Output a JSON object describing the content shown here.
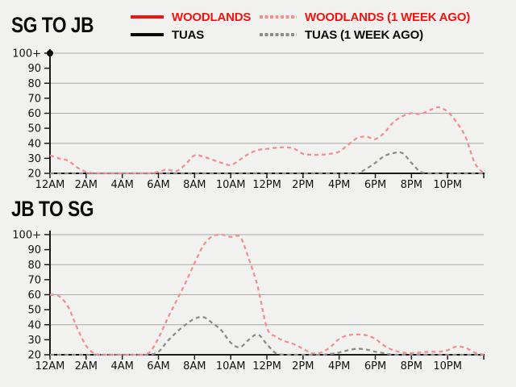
{
  "page": {
    "background": "#f1f1ef",
    "gridline_color": "#a9a9a9",
    "axis_color": "#1a1a1a",
    "label_color": "#111111"
  },
  "legend": {
    "items": [
      {
        "label": "WOODLANDS",
        "style": "solid",
        "color": "#ee1511",
        "text_color": "#ee1511"
      },
      {
        "label": "WOODLANDS (1 WEEK AGO)",
        "style": "dashed",
        "color": "#f2908e",
        "text_color": "#ee1511"
      },
      {
        "label": "TUAS",
        "style": "solid",
        "color": "#0a0a0a",
        "text_color": "#0a0a0a"
      },
      {
        "label": "TUAS (1 WEEK AGO)",
        "style": "dashed",
        "color": "#8c8c8c",
        "text_color": "#0a0a0a"
      }
    ]
  },
  "chart_data": [
    {
      "type": "line",
      "title": "SG TO JB",
      "xlabel": "",
      "ylabel": "",
      "xlim": [
        0,
        24
      ],
      "ylim": [
        20,
        100
      ],
      "x_tick_hours": [
        0,
        2,
        4,
        6,
        8,
        10,
        12,
        14,
        16,
        18,
        20,
        22,
        24
      ],
      "x_tick_labels": [
        "12AM",
        "2AM",
        "4AM",
        "6AM",
        "8AM",
        "10AM",
        "12PM",
        "2PM",
        "4PM",
        "6PM",
        "8PM",
        "10PM"
      ],
      "y_ticks": [
        20,
        30,
        40,
        50,
        60,
        70,
        80,
        90,
        100
      ],
      "y_tick_labels": [
        "20",
        "30",
        "40",
        "50",
        "60",
        "70",
        "80",
        "90",
        "100+"
      ],
      "gridline_values": [
        40,
        60,
        80,
        100
      ],
      "grid": true,
      "legend_position": "top",
      "series": [
        {
          "name": "TUAS (1 WEEK AGO)",
          "style": "dashed",
          "color": "#8c8c8c",
          "points": [
            [
              0,
              20
            ],
            [
              0.5,
              20
            ],
            [
              1,
              20
            ],
            [
              1.5,
              20
            ],
            [
              2,
              20
            ],
            [
              2.5,
              20
            ],
            [
              3,
              20
            ],
            [
              3.5,
              20
            ],
            [
              4,
              20
            ],
            [
              4.5,
              20
            ],
            [
              5,
              20
            ],
            [
              5.5,
              20
            ],
            [
              6,
              20
            ],
            [
              6.5,
              20
            ],
            [
              7,
              20
            ],
            [
              7.5,
              20
            ],
            [
              8,
              20
            ],
            [
              8.5,
              20
            ],
            [
              9,
              20
            ],
            [
              9.5,
              20
            ],
            [
              10,
              20
            ],
            [
              10.5,
              20
            ],
            [
              11,
              20
            ],
            [
              11.5,
              20
            ],
            [
              12,
              20
            ],
            [
              12.5,
              20
            ],
            [
              13,
              20
            ],
            [
              13.5,
              20
            ],
            [
              14,
              20
            ],
            [
              14.5,
              20
            ],
            [
              15,
              20
            ],
            [
              15.5,
              20
            ],
            [
              16,
              20
            ],
            [
              16.5,
              20
            ],
            [
              17,
              20
            ],
            [
              17.5,
              23
            ],
            [
              18,
              27
            ],
            [
              18.5,
              31.5
            ],
            [
              19,
              33.5
            ],
            [
              19.5,
              33.5
            ],
            [
              20,
              27
            ],
            [
              20.5,
              21
            ],
            [
              21,
              20
            ],
            [
              21.5,
              20
            ],
            [
              22,
              20
            ],
            [
              22.5,
              20
            ],
            [
              23,
              20
            ],
            [
              23.5,
              20
            ],
            [
              24,
              20
            ]
          ]
        },
        {
          "name": "WOODLANDS (1 WEEK AGO)",
          "style": "dashed",
          "color": "#f2908e",
          "points": [
            [
              0,
              32
            ],
            [
              0.5,
              30
            ],
            [
              1,
              28.5
            ],
            [
              1.5,
              24
            ],
            [
              2,
              21
            ],
            [
              2.5,
              20
            ],
            [
              3,
              20
            ],
            [
              3.5,
              20
            ],
            [
              4,
              20
            ],
            [
              4.5,
              20
            ],
            [
              5,
              20
            ],
            [
              5.5,
              20
            ],
            [
              6,
              21
            ],
            [
              6.5,
              22.5
            ],
            [
              7,
              21.5
            ],
            [
              7.5,
              26
            ],
            [
              8,
              32
            ],
            [
              8.5,
              31
            ],
            [
              9,
              29
            ],
            [
              9.5,
              27
            ],
            [
              10,
              25.5
            ],
            [
              10.5,
              29
            ],
            [
              11,
              33
            ],
            [
              11.5,
              35.5
            ],
            [
              12,
              36.3
            ],
            [
              12.5,
              37
            ],
            [
              13,
              37.3
            ],
            [
              13.5,
              36.5
            ],
            [
              14,
              33
            ],
            [
              14.5,
              32.4
            ],
            [
              15,
              32.4
            ],
            [
              15.5,
              33
            ],
            [
              16,
              34.5
            ],
            [
              16.5,
              39
            ],
            [
              17,
              43.5
            ],
            [
              17.5,
              44.5
            ],
            [
              18,
              42.8
            ],
            [
              18.5,
              47
            ],
            [
              19,
              54
            ],
            [
              19.5,
              58
            ],
            [
              20,
              60
            ],
            [
              20.5,
              59.5
            ],
            [
              21,
              62
            ],
            [
              21.5,
              64
            ],
            [
              22,
              61
            ],
            [
              22.5,
              54
            ],
            [
              23,
              44
            ],
            [
              23.5,
              27
            ],
            [
              24,
              20
            ]
          ]
        },
        {
          "name": "TUAS",
          "style": "solid",
          "color": "#0a0a0a",
          "points": [
            [
              0,
              100
            ]
          ],
          "note": "current reading shown as dot at 12AM, value 100+"
        },
        {
          "name": "WOODLANDS",
          "style": "solid",
          "color": "#ee1511",
          "points": []
        }
      ]
    },
    {
      "type": "line",
      "title": "JB TO SG",
      "xlabel": "",
      "ylabel": "",
      "xlim": [
        0,
        24
      ],
      "ylim": [
        20,
        100
      ],
      "x_tick_hours": [
        0,
        2,
        4,
        6,
        8,
        10,
        12,
        14,
        16,
        18,
        20,
        22,
        24
      ],
      "x_tick_labels": [
        "12AM",
        "2AM",
        "4AM",
        "6AM",
        "8AM",
        "10AM",
        "12PM",
        "2PM",
        "4PM",
        "6PM",
        "8PM",
        "10PM"
      ],
      "y_ticks": [
        20,
        30,
        40,
        50,
        60,
        70,
        80,
        90,
        100
      ],
      "y_tick_labels": [
        "20",
        "30",
        "40",
        "50",
        "60",
        "70",
        "80",
        "90",
        "100+"
      ],
      "gridline_values": [
        40,
        60,
        80,
        100
      ],
      "grid": true,
      "legend_position": "top",
      "series": [
        {
          "name": "TUAS (1 WEEK AGO)",
          "style": "dashed",
          "color": "#8c8c8c",
          "points": [
            [
              0,
              20
            ],
            [
              0.5,
              20
            ],
            [
              1,
              20
            ],
            [
              1.5,
              20
            ],
            [
              2,
              20
            ],
            [
              2.5,
              20
            ],
            [
              3,
              20
            ],
            [
              3.5,
              20
            ],
            [
              4,
              20
            ],
            [
              4.5,
              20
            ],
            [
              5,
              20
            ],
            [
              5.5,
              20
            ],
            [
              6,
              22
            ],
            [
              6.5,
              29
            ],
            [
              7,
              35
            ],
            [
              7.5,
              40
            ],
            [
              8,
              44
            ],
            [
              8.5,
              45
            ],
            [
              9,
              41
            ],
            [
              9.5,
              36
            ],
            [
              10,
              28
            ],
            [
              10.5,
              25
            ],
            [
              11,
              30
            ],
            [
              11.5,
              33.5
            ],
            [
              12,
              27
            ],
            [
              12.5,
              21
            ],
            [
              13,
              20
            ],
            [
              13.5,
              20
            ],
            [
              14,
              20
            ],
            [
              14.5,
              20
            ],
            [
              15,
              20
            ],
            [
              15.5,
              20.5
            ],
            [
              16,
              21.5
            ],
            [
              16.5,
              23
            ],
            [
              17,
              24
            ],
            [
              17.5,
              23.5
            ],
            [
              18,
              22
            ],
            [
              18.5,
              21
            ],
            [
              19,
              20
            ],
            [
              19.5,
              20
            ],
            [
              20,
              20
            ],
            [
              20.5,
              20
            ],
            [
              21,
              20
            ],
            [
              21.5,
              20
            ],
            [
              22,
              20
            ],
            [
              22.5,
              20
            ],
            [
              23,
              20
            ],
            [
              23.5,
              20
            ],
            [
              24,
              20
            ]
          ]
        },
        {
          "name": "WOODLANDS (1 WEEK AGO)",
          "style": "dashed",
          "color": "#f2908e",
          "points": [
            [
              0,
              60
            ],
            [
              0.5,
              59
            ],
            [
              1,
              52
            ],
            [
              1.5,
              38
            ],
            [
              2,
              26
            ],
            [
              2.5,
              20.5
            ],
            [
              3,
              20
            ],
            [
              3.5,
              20
            ],
            [
              4,
              20
            ],
            [
              4.5,
              20
            ],
            [
              5,
              20
            ],
            [
              5.5,
              21.5
            ],
            [
              6,
              31
            ],
            [
              6.5,
              44
            ],
            [
              7,
              56
            ],
            [
              7.5,
              68
            ],
            [
              8,
              81
            ],
            [
              8.5,
              93
            ],
            [
              9,
              99
            ],
            [
              9.5,
              100
            ],
            [
              10,
              98.5
            ],
            [
              10.5,
              99
            ],
            [
              11,
              84
            ],
            [
              11.5,
              65
            ],
            [
              12,
              38
            ],
            [
              12.5,
              32
            ],
            [
              13,
              29
            ],
            [
              13.5,
              27
            ],
            [
              14,
              24
            ],
            [
              14.5,
              21
            ],
            [
              15,
              21.5
            ],
            [
              15.5,
              25
            ],
            [
              16,
              30.5
            ],
            [
              16.5,
              33
            ],
            [
              17,
              33.5
            ],
            [
              17.5,
              33
            ],
            [
              18,
              30.5
            ],
            [
              18.5,
              26
            ],
            [
              19,
              23
            ],
            [
              19.5,
              21.5
            ],
            [
              20,
              21
            ],
            [
              20.5,
              21.5
            ],
            [
              21,
              22
            ],
            [
              21.5,
              22
            ],
            [
              22,
              23
            ],
            [
              22.5,
              25.5
            ],
            [
              23,
              24.5
            ],
            [
              23.5,
              21.5
            ],
            [
              24,
              20
            ]
          ]
        },
        {
          "name": "TUAS",
          "style": "solid",
          "color": "#0a0a0a",
          "points": []
        },
        {
          "name": "WOODLANDS",
          "style": "solid",
          "color": "#ee1511",
          "points": []
        }
      ]
    }
  ]
}
